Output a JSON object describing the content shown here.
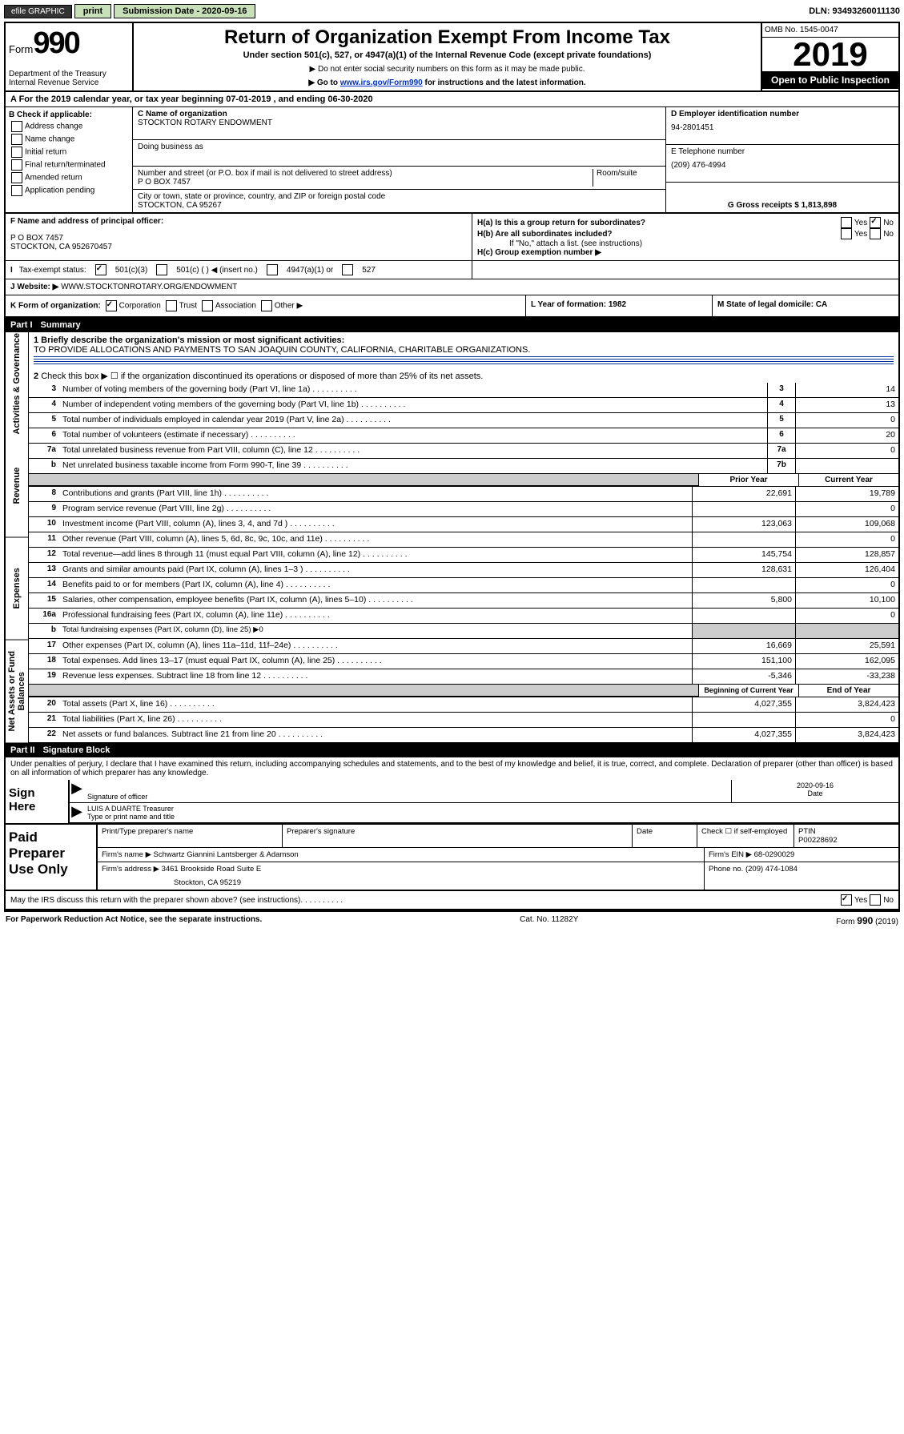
{
  "topbar": {
    "efile_label": "efile GRAPHIC",
    "print_btn": "print",
    "submission_label": "Submission Date - 2020-09-16",
    "dln": "DLN: 93493260011130"
  },
  "header": {
    "form_prefix": "Form",
    "form_no": "990",
    "dept": "Department of the Treasury\nInternal Revenue Service",
    "title": "Return of Organization Exempt From Income Tax",
    "sub": "Under section 501(c), 527, or 4947(a)(1) of the Internal Revenue Code (except private foundations)",
    "note1": "▶ Do not enter social security numbers on this form as it may be made public.",
    "note2_pre": "▶ Go to ",
    "note2_link": "www.irs.gov/Form990",
    "note2_post": " for instructions and the latest information.",
    "omb": "OMB No. 1545-0047",
    "year": "2019",
    "open": "Open to Public Inspection"
  },
  "row_a": "A For the 2019 calendar year, or tax year beginning 07-01-2019   , and ending 06-30-2020",
  "box_b": {
    "title": "B Check if applicable:",
    "items": [
      "Address change",
      "Name change",
      "Initial return",
      "Final return/terminated",
      "Amended return",
      "Application pending"
    ]
  },
  "box_c": {
    "label": "C Name of organization",
    "value": "STOCKTON ROTARY ENDOWMENT",
    "dba_label": "Doing business as",
    "addr_label": "Number and street (or P.O. box if mail is not delivered to street address)",
    "room_label": "Room/suite",
    "addr": "P O BOX 7457",
    "city_label": "City or town, state or province, country, and ZIP or foreign postal code",
    "city": "STOCKTON, CA  95267"
  },
  "box_d": {
    "label": "D Employer identification number",
    "value": "94-2801451"
  },
  "box_e": {
    "label": "E Telephone number",
    "value": "(209) 476-4994"
  },
  "box_g": "G Gross receipts $ 1,813,898",
  "box_f": {
    "label": "F Name and address of principal officer:",
    "line1": "P O BOX 7457",
    "line2": "STOCKTON, CA  952670457"
  },
  "box_h": {
    "a": "H(a)  Is this a group return for subordinates?",
    "b": "H(b)  Are all subordinates included?",
    "b_note": "If \"No,\" attach a list. (see instructions)",
    "c": "H(c)  Group exemption number ▶"
  },
  "row_i": {
    "label": "Tax-exempt status:",
    "o1": "501(c)(3)",
    "o2": "501(c) (  ) ◀ (insert no.)",
    "o3": "4947(a)(1) or",
    "o4": "527"
  },
  "row_j": {
    "label": "Website: ▶",
    "value": "WWW.STOCKTONROTARY.ORG/ENDOWMENT"
  },
  "row_k": {
    "label": "K Form of organization:",
    "o1": "Corporation",
    "o2": "Trust",
    "o3": "Association",
    "o4": "Other ▶",
    "l": "L Year of formation: 1982",
    "m": "M State of legal domicile: CA"
  },
  "parts": {
    "p1": "Part I",
    "p1_title": "Summary",
    "p2": "Part II",
    "p2_title": "Signature Block"
  },
  "sidetabs": [
    "Activities & Governance",
    "Revenue",
    "Expenses",
    "Net Assets or Fund Balances"
  ],
  "q1": {
    "label": "1  Briefly describe the organization's mission or most significant activities:",
    "value": "TO PROVIDE ALLOCATIONS AND PAYMENTS TO SAN JOAQUIN COUNTY, CALIFORNIA, CHARITABLE ORGANIZATIONS."
  },
  "q2": "Check this box ▶ ☐  if the organization discontinued its operations or disposed of more than 25% of its net assets.",
  "lines_numeric": [
    {
      "n": "3",
      "label": "Number of voting members of the governing body (Part VI, line 1a)",
      "box": "3",
      "v": "14"
    },
    {
      "n": "4",
      "label": "Number of independent voting members of the governing body (Part VI, line 1b)",
      "box": "4",
      "v": "13"
    },
    {
      "n": "5",
      "label": "Total number of individuals employed in calendar year 2019 (Part V, line 2a)",
      "box": "5",
      "v": "0"
    },
    {
      "n": "6",
      "label": "Total number of volunteers (estimate if necessary)",
      "box": "6",
      "v": "20"
    },
    {
      "n": "7a",
      "label": "Total unrelated business revenue from Part VIII, column (C), line 12",
      "box": "7a",
      "v": "0"
    },
    {
      "n": "b",
      "label": "Net unrelated business taxable income from Form 990-T, line 39",
      "box": "7b",
      "v": "",
      "thick": true
    }
  ],
  "col_hdrs": {
    "prior": "Prior Year",
    "current": "Current Year",
    "beg": "Beginning of Current Year",
    "end": "End of Year"
  },
  "revenue": [
    {
      "n": "8",
      "label": "Contributions and grants (Part VIII, line 1h)",
      "p": "22,691",
      "c": "19,789"
    },
    {
      "n": "9",
      "label": "Program service revenue (Part VIII, line 2g)",
      "p": "",
      "c": "0"
    },
    {
      "n": "10",
      "label": "Investment income (Part VIII, column (A), lines 3, 4, and 7d )",
      "p": "123,063",
      "c": "109,068"
    },
    {
      "n": "11",
      "label": "Other revenue (Part VIII, column (A), lines 5, 6d, 8c, 9c, 10c, and 11e)",
      "p": "",
      "c": "0"
    },
    {
      "n": "12",
      "label": "Total revenue—add lines 8 through 11 (must equal Part VIII, column (A), line 12)",
      "p": "145,754",
      "c": "128,857",
      "thick": true
    }
  ],
  "expenses": [
    {
      "n": "13",
      "label": "Grants and similar amounts paid (Part IX, column (A), lines 1–3 )",
      "p": "128,631",
      "c": "126,404"
    },
    {
      "n": "14",
      "label": "Benefits paid to or for members (Part IX, column (A), line 4)",
      "p": "",
      "c": "0"
    },
    {
      "n": "15",
      "label": "Salaries, other compensation, employee benefits (Part IX, column (A), lines 5–10)",
      "p": "5,800",
      "c": "10,100"
    },
    {
      "n": "16a",
      "label": "Professional fundraising fees (Part IX, column (A), line 11e)",
      "p": "",
      "c": "0"
    },
    {
      "n": "b",
      "label": "Total fundraising expenses (Part IX, column (D), line 25) ▶0",
      "shaded": true
    },
    {
      "n": "17",
      "label": "Other expenses (Part IX, column (A), lines 11a–11d, 11f–24e)",
      "p": "16,669",
      "c": "25,591"
    },
    {
      "n": "18",
      "label": "Total expenses. Add lines 13–17 (must equal Part IX, column (A), line 25)",
      "p": "151,100",
      "c": "162,095"
    },
    {
      "n": "19",
      "label": "Revenue less expenses. Subtract line 18 from line 12",
      "p": "-5,346",
      "c": "-33,238",
      "thick": true
    }
  ],
  "netassets": [
    {
      "n": "20",
      "label": "Total assets (Part X, line 16)",
      "p": "4,027,355",
      "c": "3,824,423"
    },
    {
      "n": "21",
      "label": "Total liabilities (Part X, line 26)",
      "p": "",
      "c": "0"
    },
    {
      "n": "22",
      "label": "Net assets or fund balances. Subtract line 21 from line 20",
      "p": "4,027,355",
      "c": "3,824,423"
    }
  ],
  "sig": {
    "intro": "Under penalties of perjury, I declare that I have examined this return, including accompanying schedules and statements, and to the best of my knowledge and belief, it is true, correct, and complete. Declaration of preparer (other than officer) is based on all information of which preparer has any knowledge.",
    "sign_here": "Sign Here",
    "sig_label": "Signature of officer",
    "date": "2020-09-16",
    "date_label": "Date",
    "name": "LUIS A DUARTE  Treasurer",
    "name_label": "Type or print name and title"
  },
  "paid": {
    "title": "Paid Preparer Use Only",
    "h1": "Print/Type preparer's name",
    "h2": "Preparer's signature",
    "h3": "Date",
    "check_label": "Check ☐ if self-employed",
    "ptin_label": "PTIN",
    "ptin": "P00228692",
    "firm_name_label": "Firm's name   ▶",
    "firm_name": "Schwartz Giannini Lantsberger & Adamson",
    "ein_label": "Firm's EIN ▶",
    "ein": "68-0290029",
    "firm_addr_label": "Firm's address ▶",
    "firm_addr1": "3461 Brookside Road Suite E",
    "firm_addr2": "Stockton, CA  95219",
    "phone_label": "Phone no.",
    "phone": "(209) 474-1084"
  },
  "discuss": "May the IRS discuss this return with the preparer shown above? (see instructions)",
  "footer": {
    "pra": "For Paperwork Reduction Act Notice, see the separate instructions.",
    "cat": "Cat. No. 11282Y",
    "form": "Form 990 (2019)"
  },
  "yes": "Yes",
  "no": "No"
}
